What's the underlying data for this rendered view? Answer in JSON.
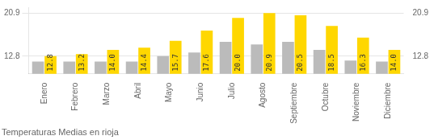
{
  "chart_data": {
    "type": "bar",
    "title": "Temperaturas Medias en rioja",
    "categories": [
      "Enero",
      "Febrero",
      "Marzo",
      "Abril",
      "Mayo",
      "Junio",
      "Julio",
      "Agosto",
      "Septiembre",
      "Octubre",
      "Noviembre",
      "Diciembre"
    ],
    "series": [
      {
        "color": "#BBBBBB",
        "values": [
          11.8,
          11.8,
          11.8,
          11.8,
          12.8,
          13.5,
          15.5,
          15.0,
          15.5,
          14.0,
          12.0,
          11.8
        ]
      },
      {
        "color": "#FFD700",
        "values": [
          12.8,
          13.2,
          14.0,
          14.4,
          15.7,
          17.6,
          20.0,
          20.9,
          20.5,
          18.5,
          16.3,
          14.0
        ],
        "data_labels": true,
        "value_labels": [
          "12.8",
          "13.2",
          "14.0",
          "14.4",
          "15.7",
          "17.6",
          "20.0",
          "20.9",
          "20.5",
          "18.5",
          "16.3",
          "14.0"
        ]
      }
    ],
    "ylim": [
      9.5,
      22.0
    ],
    "yticks": [
      12.8,
      20.9
    ],
    "y2lim": [
      9.5,
      22.0
    ],
    "y2ticks": [
      12.8,
      20.9
    ],
    "grid": true
  }
}
